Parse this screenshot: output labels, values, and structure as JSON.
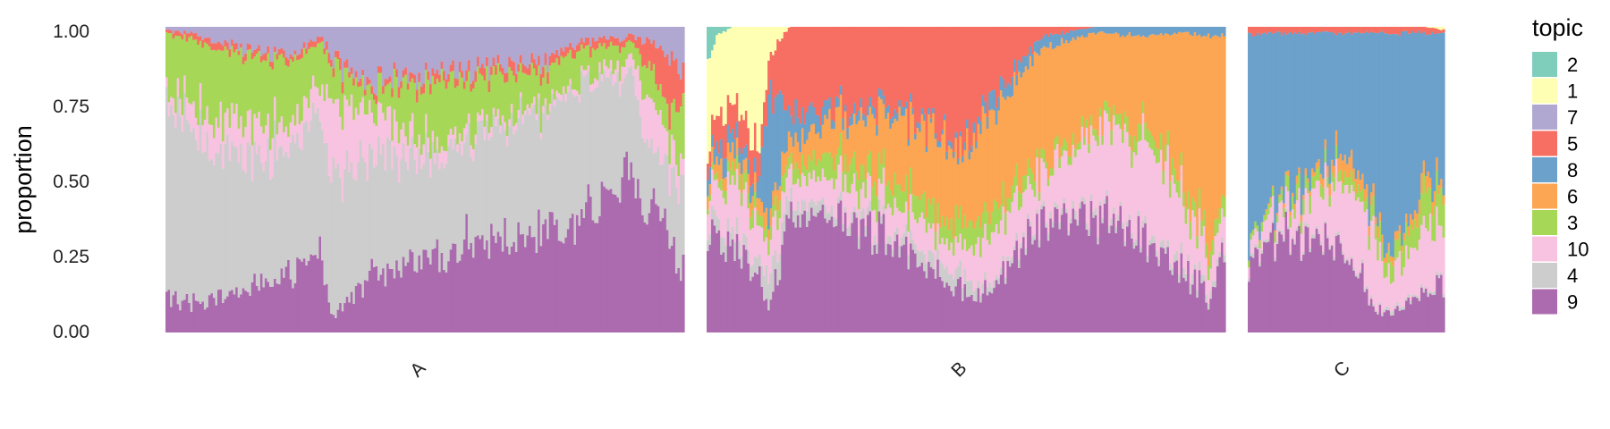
{
  "chart_data": {
    "type": "area",
    "subtype": "stacked-structure-plot",
    "title": "",
    "xlabel": "",
    "ylabel": "proportion",
    "ylim": [
      0,
      1
    ],
    "yticks": [
      "0.00",
      "0.25",
      "0.50",
      "0.75",
      "1.00"
    ],
    "yticks_values": [
      0,
      0.25,
      0.5,
      0.75,
      1
    ],
    "grid": false,
    "legend_title": "topic",
    "legend_placement": "right",
    "stack_order_bottom_to_top": [
      "9",
      "4",
      "10",
      "3",
      "6",
      "8",
      "5",
      "7",
      "1",
      "2"
    ],
    "legend": [
      {
        "topic": "2",
        "color": "#7fcdbb"
      },
      {
        "topic": "1",
        "color": "#ffffb3"
      },
      {
        "topic": "7",
        "color": "#b1a8d1"
      },
      {
        "topic": "5",
        "color": "#f76e62"
      },
      {
        "topic": "8",
        "color": "#6ba1cb"
      },
      {
        "topic": "6",
        "color": "#fca553"
      },
      {
        "topic": "3",
        "color": "#a6d756"
      },
      {
        "topic": "10",
        "color": "#f8c3e0"
      },
      {
        "topic": "4",
        "color": "#cdcdcd"
      },
      {
        "topic": "9",
        "color": "#ac6aaf"
      }
    ],
    "panels": [
      {
        "label": "A",
        "n_samples": 230,
        "profile": {
          "x": [
            0,
            0.05,
            0.15,
            0.25,
            0.3,
            0.32,
            0.4,
            0.5,
            0.6,
            0.7,
            0.8,
            0.9,
            0.94,
            0.97,
            1.0
          ],
          "9": [
            0.12,
            0.1,
            0.12,
            0.2,
            0.28,
            0.05,
            0.18,
            0.25,
            0.3,
            0.32,
            0.38,
            0.5,
            0.45,
            0.3,
            0.2
          ],
          "4": [
            0.65,
            0.58,
            0.45,
            0.4,
            0.45,
            0.45,
            0.4,
            0.32,
            0.35,
            0.38,
            0.42,
            0.35,
            0.15,
            0.2,
            0.3
          ],
          "10": [
            0.03,
            0.08,
            0.12,
            0.08,
            0.1,
            0.25,
            0.15,
            0.05,
            0.03,
            0.02,
            0.02,
            0.05,
            0.15,
            0.1,
            0.05
          ],
          "3": [
            0.18,
            0.2,
            0.22,
            0.2,
            0.12,
            0.12,
            0.07,
            0.2,
            0.15,
            0.12,
            0.1,
            0.05,
            0.1,
            0.1,
            0.2
          ],
          "6": [
            0,
            0,
            0,
            0,
            0,
            0,
            0,
            0,
            0,
            0,
            0,
            0,
            0,
            0,
            0
          ],
          "8": [
            0,
            0,
            0,
            0,
            0,
            0,
            0,
            0,
            0,
            0,
            0,
            0,
            0,
            0,
            0
          ],
          "5": [
            0.01,
            0.02,
            0.02,
            0.02,
            0.02,
            0.03,
            0.02,
            0.03,
            0.03,
            0.03,
            0.03,
            0.02,
            0.1,
            0.2,
            0.1
          ],
          "7": [
            0.01,
            0.02,
            0.07,
            0.1,
            0.03,
            0.1,
            0.18,
            0.15,
            0.14,
            0.13,
            0.05,
            0.03,
            0.05,
            0.1,
            0.15
          ],
          "1": [
            0,
            0,
            0,
            0,
            0,
            0,
            0,
            0,
            0,
            0,
            0,
            0,
            0,
            0,
            0
          ],
          "2": [
            0,
            0,
            0,
            0,
            0,
            0,
            0,
            0,
            0,
            0,
            0,
            0,
            0,
            0,
            0
          ]
        }
      },
      {
        "label": "B",
        "n_samples": 230,
        "profile": {
          "x": [
            0,
            0.02,
            0.05,
            0.1,
            0.12,
            0.16,
            0.25,
            0.35,
            0.45,
            0.5,
            0.55,
            0.65,
            0.75,
            0.85,
            0.92,
            0.97,
            1.0
          ],
          "9": [
            0.25,
            0.35,
            0.3,
            0.2,
            0.1,
            0.35,
            0.38,
            0.3,
            0.2,
            0.12,
            0.15,
            0.35,
            0.38,
            0.3,
            0.2,
            0.1,
            0.3
          ],
          "4": [
            0.05,
            0.05,
            0.05,
            0.05,
            0.1,
            0.05,
            0.03,
            0.03,
            0.05,
            0.05,
            0.02,
            0.02,
            0.02,
            0.02,
            0.03,
            0.02,
            0.02
          ],
          "10": [
            0.1,
            0.1,
            0.15,
            0.12,
            0.1,
            0.08,
            0.1,
            0.1,
            0.08,
            0.12,
            0.15,
            0.15,
            0.25,
            0.3,
            0.2,
            0.1,
            0.1
          ],
          "3": [
            0.02,
            0.02,
            0.05,
            0.05,
            0.05,
            0.05,
            0.07,
            0.07,
            0.07,
            0.08,
            0.08,
            0.03,
            0.03,
            0.05,
            0.05,
            0.05,
            0.05
          ],
          "6": [
            0.05,
            0.05,
            0.05,
            0.05,
            0.05,
            0.07,
            0.12,
            0.2,
            0.25,
            0.25,
            0.3,
            0.38,
            0.3,
            0.3,
            0.5,
            0.7,
            0.5
          ],
          "8": [
            0.05,
            0.05,
            0.05,
            0.05,
            0.4,
            0.1,
            0.03,
            0.03,
            0.02,
            0.02,
            0.05,
            0.04,
            0.02,
            0.03,
            0.02,
            0.03,
            0.03
          ],
          "5": [
            0.05,
            0.1,
            0.1,
            0.1,
            0.1,
            0.3,
            0.27,
            0.27,
            0.33,
            0.36,
            0.25,
            0.03,
            0,
            0,
            0,
            0,
            0
          ],
          "7": [
            0,
            0,
            0,
            0,
            0,
            0,
            0,
            0,
            0,
            0,
            0,
            0,
            0,
            0,
            0,
            0,
            0
          ],
          "1": [
            0.3,
            0.25,
            0.25,
            0.38,
            0.1,
            0,
            0,
            0,
            0,
            0,
            0,
            0,
            0,
            0,
            0,
            0,
            0
          ],
          "2": [
            0.13,
            0.03,
            0,
            0,
            0,
            0,
            0,
            0,
            0,
            0,
            0,
            0,
            0,
            0,
            0,
            0,
            0
          ]
        }
      },
      {
        "label": "C",
        "n_samples": 90,
        "profile": {
          "x": [
            0,
            0.05,
            0.15,
            0.25,
            0.35,
            0.45,
            0.55,
            0.65,
            0.72,
            0.8,
            0.9,
            1.0
          ],
          "9": [
            0.2,
            0.28,
            0.3,
            0.32,
            0.3,
            0.28,
            0.2,
            0.08,
            0.05,
            0.1,
            0.12,
            0.15
          ],
          "4": [
            0.01,
            0.01,
            0.01,
            0.01,
            0.01,
            0.01,
            0.01,
            0.01,
            0.01,
            0.01,
            0.01,
            0.01
          ],
          "10": [
            0.05,
            0.05,
            0.08,
            0.1,
            0.13,
            0.2,
            0.25,
            0.22,
            0.1,
            0.15,
            0.2,
            0.2
          ],
          "3": [
            0.02,
            0.02,
            0.03,
            0.04,
            0.04,
            0.04,
            0.04,
            0.06,
            0.05,
            0.08,
            0.1,
            0.1
          ],
          "6": [
            0.0,
            0.0,
            0.01,
            0.02,
            0.02,
            0.05,
            0.06,
            0.03,
            0.02,
            0.03,
            0.05,
            0.03
          ],
          "8": [
            0.7,
            0.62,
            0.55,
            0.49,
            0.48,
            0.4,
            0.42,
            0.58,
            0.75,
            0.61,
            0.5,
            0.5
          ],
          "5": [
            0.02,
            0.02,
            0.02,
            0.02,
            0.02,
            0.02,
            0.02,
            0.02,
            0.02,
            0.02,
            0.02,
            0.01
          ],
          "7": [
            0,
            0,
            0,
            0,
            0,
            0,
            0,
            0,
            0,
            0,
            0,
            0
          ],
          "1": [
            0,
            0,
            0,
            0,
            0,
            0,
            0,
            0,
            0,
            0,
            0,
            0.01
          ],
          "2": [
            0,
            0,
            0,
            0,
            0,
            0,
            0,
            0,
            0,
            0,
            0,
            0
          ]
        }
      }
    ]
  }
}
